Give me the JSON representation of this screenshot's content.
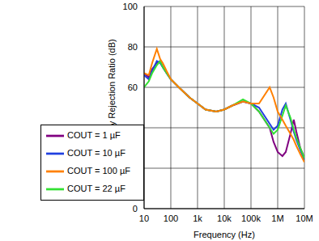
{
  "chart_data": {
    "type": "line",
    "x_label": "Frequency (Hz)",
    "y_label": "Power Supply Rejection Ratio (dB)",
    "log": "x",
    "grid": true,
    "legend": "lower left",
    "xlim": [
      10,
      10000000
    ],
    "ylim": [
      0,
      100
    ],
    "xticks": [
      10,
      100,
      {
        "value": 1000,
        "label": "1k"
      },
      {
        "value": 10000,
        "label": "10k"
      },
      {
        "value": 100000,
        "label": "100k"
      },
      {
        "value": 1000000,
        "label": "1M"
      },
      {
        "value": 10000000,
        "label": "10M"
      }
    ],
    "yticks": [
      0,
      20,
      40,
      60,
      80,
      100
    ],
    "x": [
      10,
      15,
      20,
      30,
      40,
      50,
      70,
      100,
      200,
      500,
      1000,
      2000,
      5000,
      10000,
      20000,
      50000,
      100000,
      200000,
      500000,
      700000,
      1000000,
      1500000,
      2000000,
      3000000,
      4000000,
      5000000,
      7000000,
      10000000
    ],
    "series": [
      {
        "name": "COUT = 1 µF",
        "color": "#800080",
        "values": [
          67,
          65,
          69,
          72,
          73,
          70,
          67,
          64,
          60,
          55,
          52,
          49,
          48,
          49,
          51,
          53,
          52,
          48,
          40,
          33,
          28,
          26,
          28,
          37,
          44,
          38,
          30,
          25
        ]
      },
      {
        "name": "COUT = 10 µF",
        "color": "#2040e0",
        "values": [
          66,
          64,
          68,
          73,
          72,
          70,
          67,
          64,
          60,
          55,
          52,
          49,
          48,
          49,
          51,
          53,
          52,
          50,
          42,
          39,
          41,
          49,
          52,
          44,
          38,
          34,
          29,
          24
        ]
      },
      {
        "name": "COUT = 22 µF",
        "color": "#33e033",
        "values": [
          60,
          63,
          67,
          71,
          73,
          70,
          67,
          64,
          60,
          55,
          52,
          49,
          48,
          49,
          51,
          54,
          52,
          48,
          40,
          37,
          39,
          46,
          51,
          45,
          39,
          35,
          30,
          25
        ]
      },
      {
        "name": "COUT = 100 µF",
        "color": "#ff8000",
        "values": [
          67,
          66,
          72,
          79,
          74,
          72,
          68,
          64,
          60,
          55,
          52,
          49,
          48,
          49,
          51,
          53,
          52,
          52,
          60,
          55,
          48,
          44,
          41,
          37,
          34,
          31,
          27,
          23
        ]
      }
    ]
  }
}
